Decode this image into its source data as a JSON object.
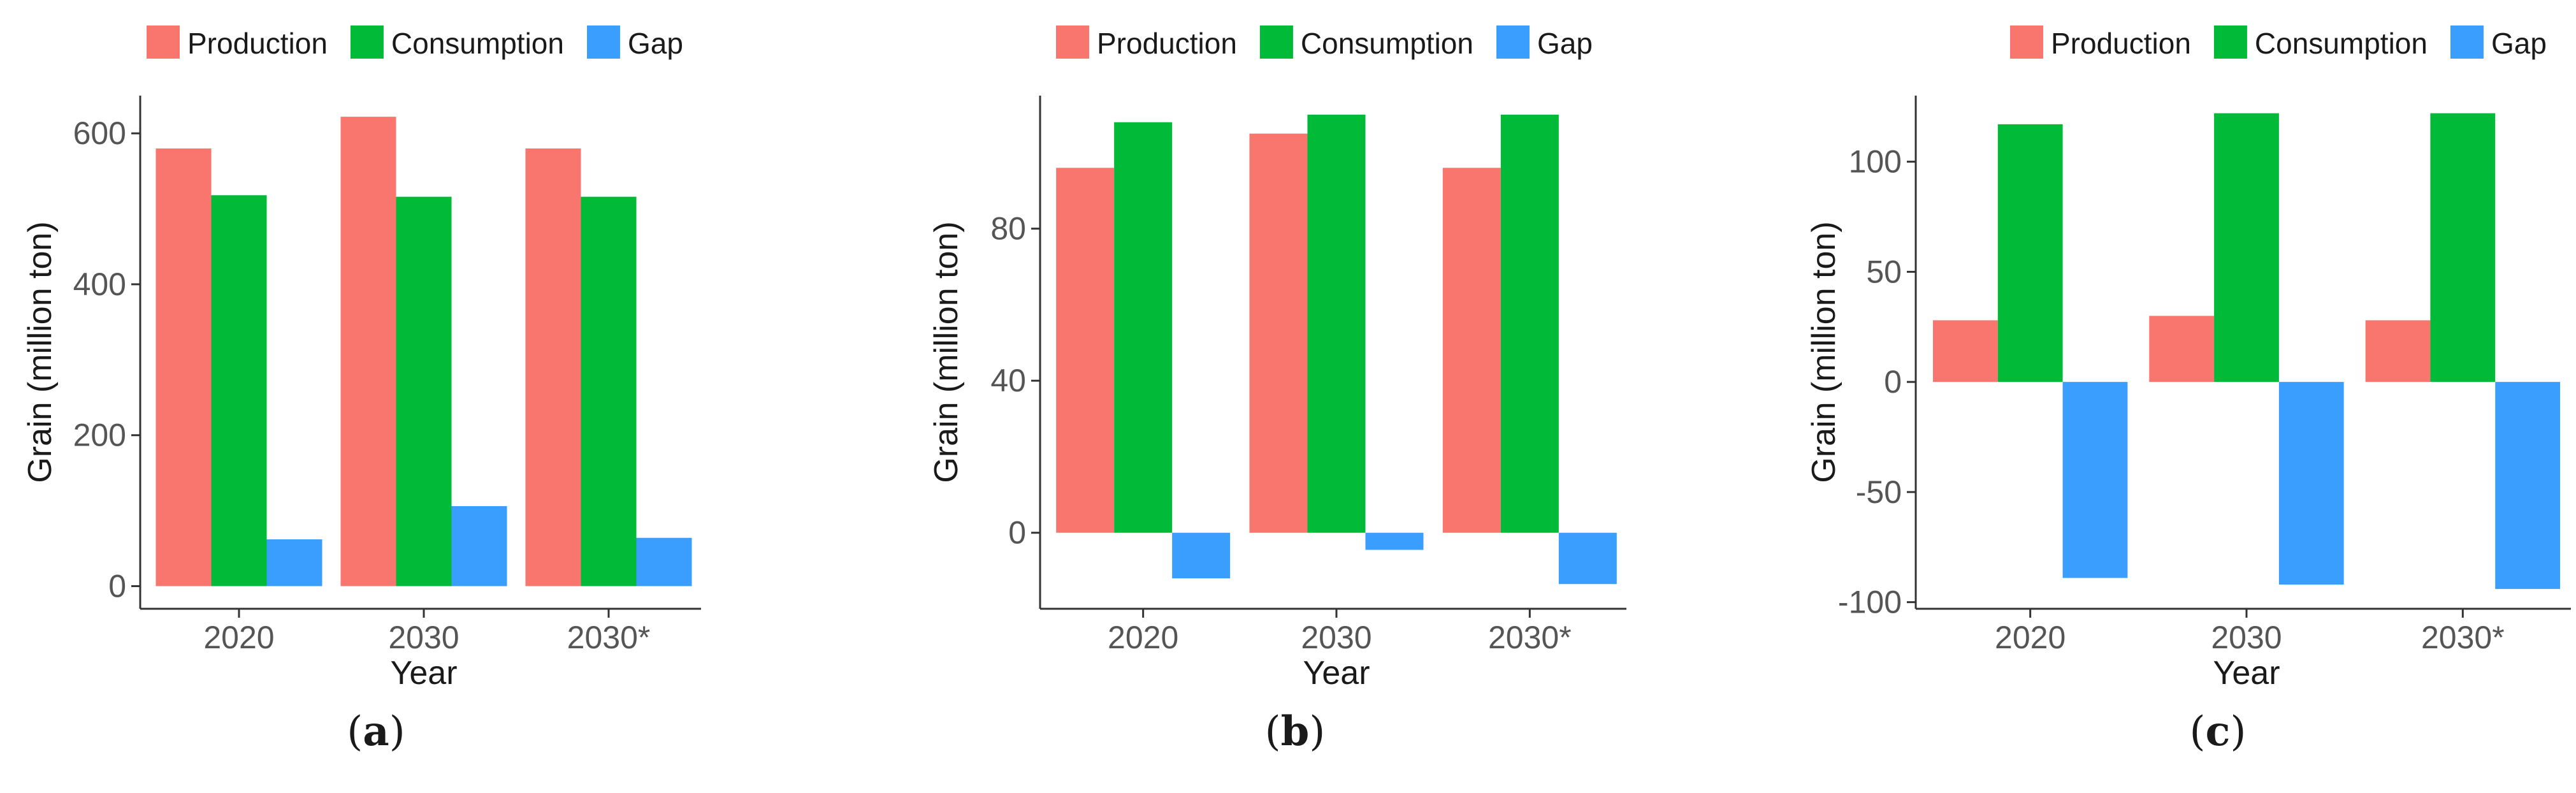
{
  "colors": {
    "production": "#F8766D",
    "consumption": "#00BA38",
    "gap": "#3A9EFF",
    "axis": "#333333"
  },
  "panels": [
    {
      "label": "a",
      "legend": [
        "Production",
        "Consumption",
        "Gap"
      ],
      "chart_data": {
        "type": "bar",
        "categories": [
          "2020",
          "2030",
          "2030*"
        ],
        "series": [
          {
            "name": "Production",
            "values": [
              580,
              622,
              580
            ]
          },
          {
            "name": "Consumption",
            "values": [
              518,
              516,
              516
            ]
          },
          {
            "name": "Gap",
            "values": [
              62,
              106,
              64
            ]
          }
        ],
        "xlabel": "Year",
        "ylabel": "Grain (million ton)",
        "ylim": [
          -30,
          650
        ],
        "yticks": [
          0,
          200,
          400,
          600
        ],
        "legend_position": "top",
        "grid": false
      }
    },
    {
      "label": "b",
      "legend": [
        "Production",
        "Consumption",
        "Gap"
      ],
      "chart_data": {
        "type": "bar",
        "categories": [
          "2020",
          "2030",
          "2030*"
        ],
        "series": [
          {
            "name": "Production",
            "values": [
              96,
              105,
              96
            ]
          },
          {
            "name": "Consumption",
            "values": [
              108,
              110,
              110
            ]
          },
          {
            "name": "Gap",
            "values": [
              -12,
              -4.5,
              -13.5
            ]
          }
        ],
        "xlabel": "Year",
        "ylabel": "Grain (million ton)",
        "ylim": [
          -20,
          115
        ],
        "yticks": [
          0,
          40,
          80
        ],
        "legend_position": "top",
        "grid": false
      }
    },
    {
      "label": "c",
      "legend": [
        "Production",
        "Consumption",
        "Gap"
      ],
      "chart_data": {
        "type": "bar",
        "categories": [
          "2020",
          "2030",
          "2030*"
        ],
        "series": [
          {
            "name": "Production",
            "values": [
              28,
              30,
              28
            ]
          },
          {
            "name": "Consumption",
            "values": [
              117,
              122,
              122
            ]
          },
          {
            "name": "Gap",
            "values": [
              -89,
              -92,
              -94
            ]
          }
        ],
        "xlabel": "Year",
        "ylabel": "Grain (million ton)",
        "ylim": [
          -103,
          130
        ],
        "yticks": [
          -100,
          -50,
          0,
          50,
          100
        ],
        "legend_position": "top",
        "grid": false
      }
    }
  ]
}
